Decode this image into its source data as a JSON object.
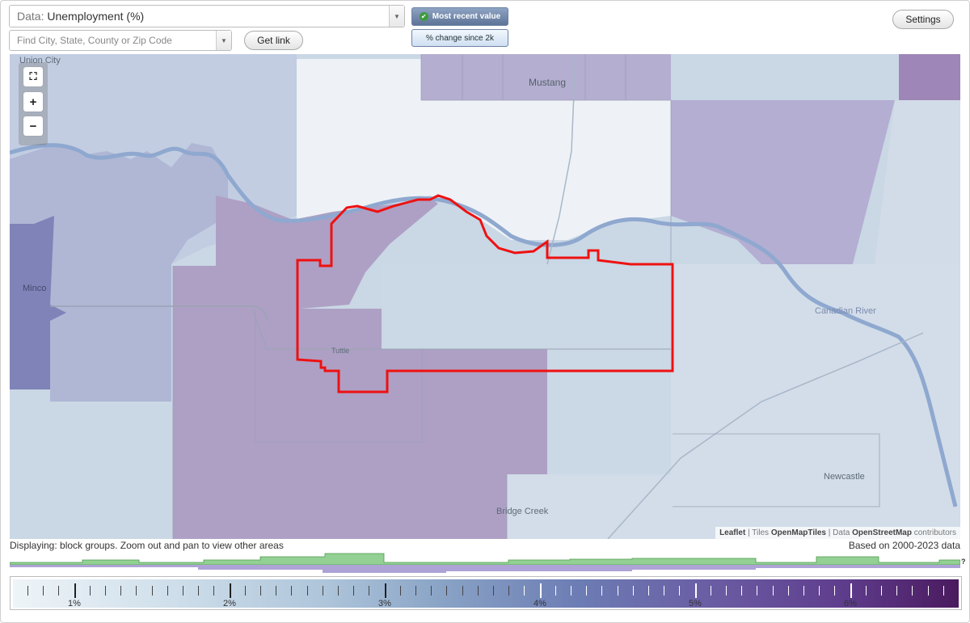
{
  "data_select": {
    "prefix": "Data: ",
    "value": "Unemployment (%)"
  },
  "search": {
    "placeholder": "Find City, State, County or Zip Code"
  },
  "buttons": {
    "get_link": "Get link",
    "settings": "Settings"
  },
  "toggles": {
    "most_recent": "Most recent value",
    "pct_change": "% change since 2k"
  },
  "map_labels": {
    "union_city": "Union City",
    "mustang": "Mustang",
    "tuttle": "Tuttle",
    "minco": "Minco",
    "bridge_creek": "Bridge Creek",
    "newcastle": "Newcastle",
    "canadian_river": "Canadian River"
  },
  "attribution": {
    "leaflet": "Leaflet",
    "tiles_prefix": "Tiles",
    "tiles": "OpenMapTiles",
    "data_prefix": "Data",
    "data": "OpenStreetMap",
    "suffix": "contributors"
  },
  "display_note": "Displaying: block groups. Zoom out and pan to view other areas",
  "data_years": "Based on 2000-2023 data",
  "histogram_help": "?",
  "legend": {
    "tick_labels": [
      "1%",
      "2%",
      "3%",
      "4%",
      "5%",
      "6%"
    ]
  },
  "colors": {
    "boundary": "#ee1111",
    "legend_low": "#eef4f8",
    "legend_high": "#4a1a5e",
    "hist_green": "#8fd08f",
    "hist_purple": "#a89ad0"
  }
}
